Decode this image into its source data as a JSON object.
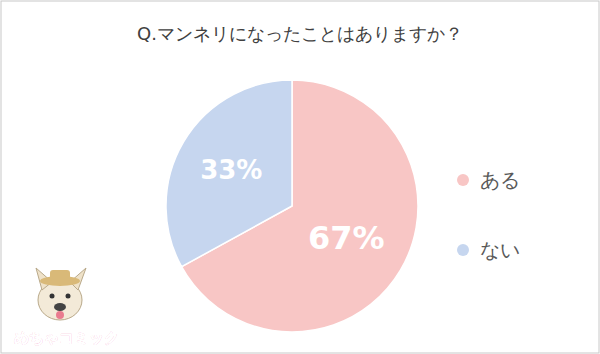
{
  "chart_data": {
    "type": "pie",
    "title": "Q.マンネリになったことはありますか？",
    "categories": [
      "ある",
      "ない"
    ],
    "values": [
      67,
      33
    ],
    "colors": [
      "#f8c6c5",
      "#c6d6ef"
    ],
    "data_labels": true,
    "value_labels": [
      "67%",
      "33%"
    ],
    "legend": "right",
    "annotations": [
      "めちゃコミック"
    ]
  }
}
